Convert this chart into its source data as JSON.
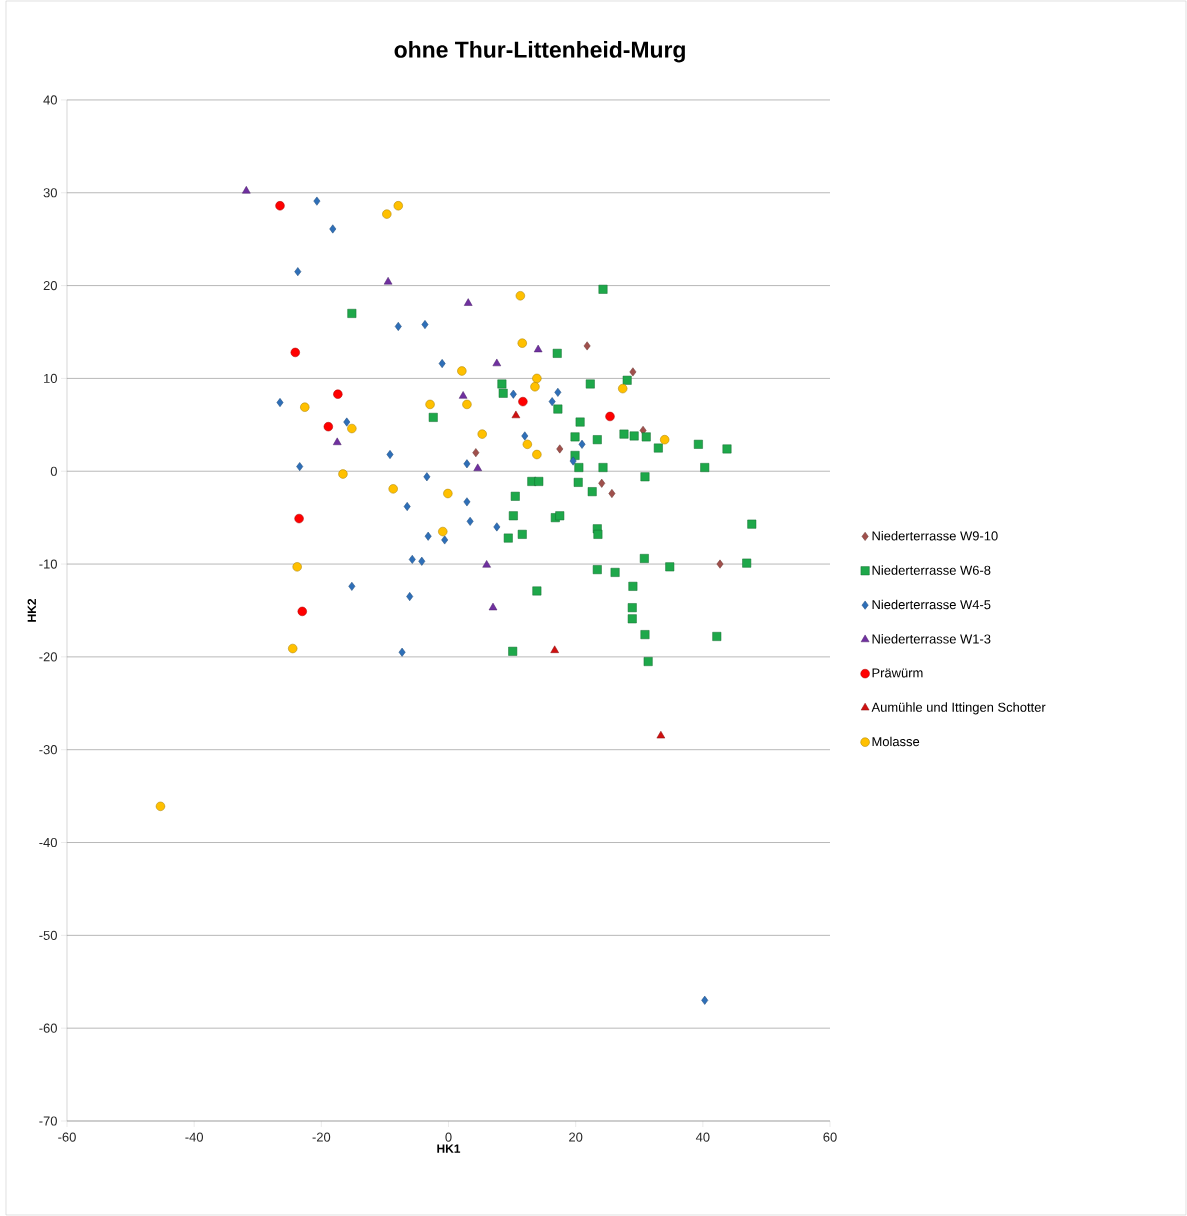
{
  "chart_data": {
    "type": "scatter",
    "title": "ohne Thur-Littenheid-Murg",
    "xlabel": "HK1",
    "ylabel": "HK2",
    "xlim": [
      -60,
      60
    ],
    "ylim": [
      -70,
      40
    ],
    "xticks": [
      -60,
      -40,
      -20,
      0,
      20,
      40,
      60
    ],
    "yticks": [
      -70,
      -60,
      -50,
      -40,
      -30,
      -20,
      -10,
      0,
      10,
      20,
      30,
      40
    ],
    "grid": "y",
    "legend": "right",
    "series": [
      {
        "name": "Niederterrasse W9-10",
        "color": "#a0504c",
        "marker": "diamond",
        "x": [
          4.3,
          21.8,
          29.0,
          17.5,
          30.6,
          24.1,
          25.7,
          42.7
        ],
        "values": [
          2.0,
          13.5,
          10.7,
          2.4,
          4.4,
          -1.3,
          -2.4,
          -10.0
        ]
      },
      {
        "name": "Niederterrasse W6-8",
        "color": "#1ea84a",
        "marker": "square",
        "x": [
          -15.2,
          -2.4,
          24.3,
          17.1,
          8.4,
          8.6,
          22.3,
          28.1,
          17.2,
          20.7,
          19.9,
          23.4,
          27.6,
          29.2,
          31.1,
          33.0,
          39.3,
          43.8,
          19.9,
          20.5,
          24.3,
          30.9,
          40.3,
          20.4,
          22.6,
          13.1,
          14.2,
          10.5,
          10.2,
          16.8,
          17.5,
          9.4,
          11.6,
          23.4,
          23.5,
          47.7,
          30.8,
          23.4,
          26.2,
          34.8,
          46.9,
          29.0,
          13.9,
          28.9,
          28.9,
          30.9,
          42.2,
          10.1,
          31.4
        ],
        "values": [
          17.0,
          5.8,
          19.6,
          12.7,
          9.4,
          8.4,
          9.4,
          9.8,
          6.7,
          5.3,
          3.7,
          3.4,
          4.0,
          3.8,
          3.7,
          2.5,
          2.9,
          2.4,
          1.7,
          0.4,
          0.4,
          -0.6,
          0.4,
          -1.2,
          -2.2,
          -1.1,
          -1.1,
          -2.7,
          -4.8,
          -5.0,
          -4.8,
          -7.2,
          -6.8,
          -6.2,
          -6.8,
          -5.7,
          -9.4,
          -10.6,
          -10.9,
          -10.3,
          -9.9,
          -12.4,
          -12.9,
          -14.7,
          -15.9,
          -17.6,
          -17.8,
          -19.4,
          -20.5
        ]
      },
      {
        "name": "Niederterrasse W4-5",
        "color": "#2e6fb8",
        "marker": "diamond",
        "x": [
          -20.7,
          -18.2,
          -23.7,
          -7.9,
          -3.7,
          -1.0,
          -26.5,
          -16.0,
          -9.2,
          -23.4,
          -3.4,
          -6.5,
          -3.2,
          -0.6,
          -5.7,
          -4.2,
          -15.2,
          -6.1,
          -7.3,
          10.2,
          17.2,
          16.3,
          21.0,
          19.6,
          2.9,
          12.0,
          2.9,
          3.4,
          7.6,
          40.3
        ],
        "values": [
          29.1,
          26.1,
          21.5,
          15.6,
          15.8,
          11.6,
          7.4,
          5.3,
          1.8,
          0.5,
          -0.6,
          -3.8,
          -7.0,
          -7.4,
          -9.5,
          -9.7,
          -12.4,
          -13.5,
          -19.5,
          8.3,
          8.5,
          7.5,
          2.9,
          1.1,
          0.8,
          3.8,
          -3.3,
          -5.4,
          -6.0,
          -57.0
        ]
      },
      {
        "name": "Niederterrasse W1-3",
        "color": "#7030a0",
        "marker": "triangle",
        "x": [
          -31.8,
          -9.5,
          -17.5,
          3.1,
          14.1,
          7.6,
          2.3,
          4.6,
          6.0,
          7.0
        ],
        "values": [
          30.2,
          20.4,
          3.1,
          18.1,
          13.1,
          11.6,
          8.1,
          0.3,
          -10.1,
          -14.7
        ]
      },
      {
        "name": "Präwürm",
        "color": "#ff0000",
        "marker": "circle",
        "x": [
          -26.5,
          -24.1,
          -17.4,
          -18.9,
          -23.5,
          -23.0,
          11.7,
          25.4
        ],
        "values": [
          28.6,
          12.8,
          8.3,
          4.8,
          -5.1,
          -15.1,
          7.5,
          5.9
        ]
      },
      {
        "name": "Aumühle und Ittingen Schotter",
        "color": "#d01010",
        "marker": "triangle",
        "x": [
          10.6,
          16.7,
          33.4
        ],
        "values": [
          6.0,
          -19.3,
          -28.5
        ]
      },
      {
        "name": "Molasse",
        "color": "#ffc000",
        "marker": "circle",
        "x": [
          -9.7,
          -7.9,
          -22.6,
          -2.9,
          -15.2,
          -16.6,
          -8.7,
          -0.1,
          -0.9,
          -23.8,
          -24.5,
          11.3,
          11.6,
          2.1,
          13.9,
          13.6,
          27.4,
          2.9,
          5.3,
          12.4,
          13.9,
          34.0,
          -45.3
        ],
        "values": [
          27.7,
          28.6,
          6.9,
          7.2,
          4.6,
          -0.3,
          -1.9,
          -2.4,
          -6.5,
          -10.3,
          -19.1,
          18.9,
          13.8,
          10.8,
          10.0,
          9.1,
          8.9,
          7.2,
          4.0,
          2.9,
          1.8,
          3.4,
          -36.1
        ]
      }
    ]
  }
}
